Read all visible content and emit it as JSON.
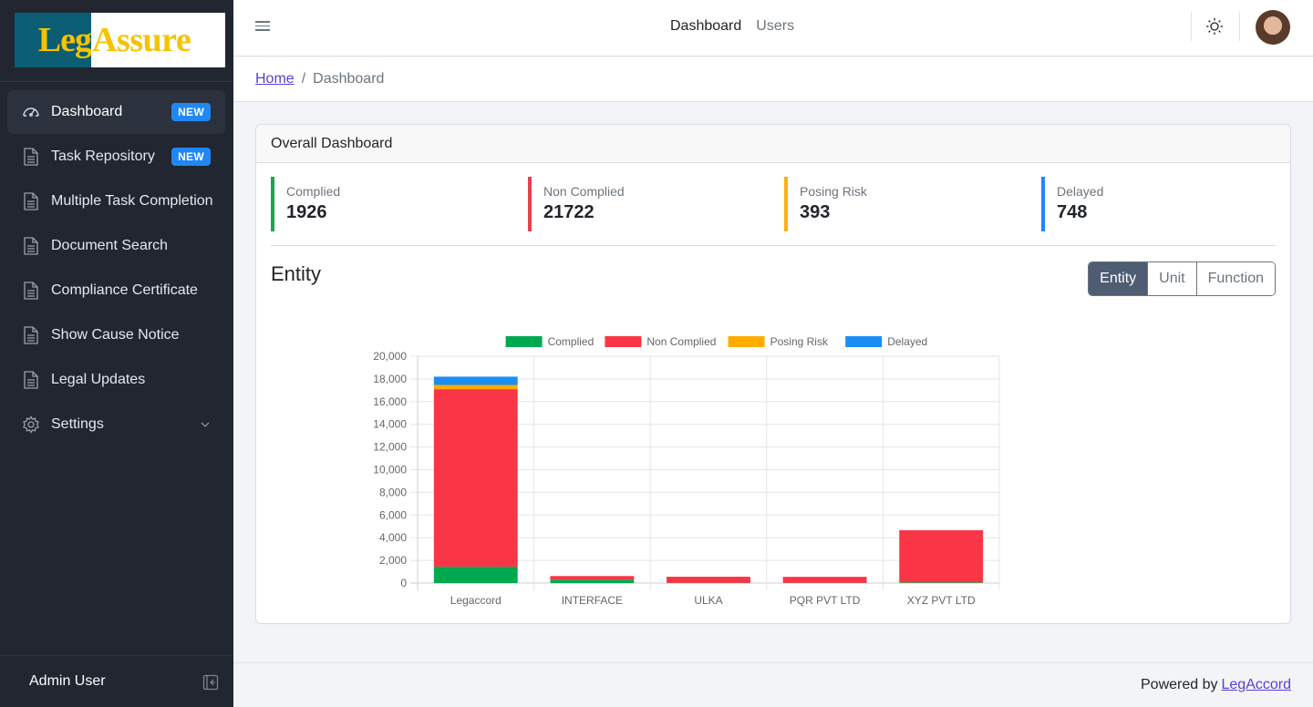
{
  "logo": {
    "part1": "Leg",
    "part2": "Assure"
  },
  "sidebar": {
    "items": [
      {
        "label": "Dashboard",
        "badge": "NEW",
        "icon": "speedometer-icon"
      },
      {
        "label": "Task Repository",
        "badge": "NEW",
        "icon": "document-icon"
      },
      {
        "label": "Multiple Task Completion",
        "icon": "document-icon"
      },
      {
        "label": "Document Search",
        "icon": "document-icon"
      },
      {
        "label": "Compliance Certificate",
        "icon": "document-icon"
      },
      {
        "label": "Show Cause Notice",
        "icon": "document-icon"
      },
      {
        "label": "Legal Updates",
        "icon": "document-icon"
      },
      {
        "label": "Settings",
        "icon": "gear-icon"
      }
    ],
    "footer_user": "Admin User"
  },
  "header": {
    "nav": [
      "Dashboard",
      "Users"
    ]
  },
  "breadcrumb": {
    "home": "Home",
    "current": "Dashboard"
  },
  "card": {
    "title": "Overall Dashboard",
    "stats": [
      {
        "label": "Complied",
        "value": "1926",
        "color": "#1aa64a"
      },
      {
        "label": "Non Complied",
        "value": "21722",
        "color": "#e5424d"
      },
      {
        "label": "Posing Risk",
        "value": "393",
        "color": "#f9b115"
      },
      {
        "label": "Delayed",
        "value": "748",
        "color": "#1f88f5"
      }
    ],
    "section_title": "Entity",
    "view_buttons": [
      "Entity",
      "Unit",
      "Function"
    ]
  },
  "chart_data": {
    "type": "bar",
    "stacked": true,
    "categories": [
      "Legaccord",
      "INTERFACE",
      "ULKA",
      "PQR PVT LTD",
      "XYZ PVT LTD"
    ],
    "series": [
      {
        "name": "Complied",
        "color": "#00a94f",
        "values": [
          1450,
          300,
          20,
          20,
          60
        ]
      },
      {
        "name": "Non Complied",
        "color": "#fa3546",
        "values": [
          15650,
          320,
          540,
          530,
          4600
        ]
      },
      {
        "name": "Posing Risk",
        "color": "#ffac00",
        "values": [
          370,
          0,
          0,
          0,
          0
        ]
      },
      {
        "name": "Delayed",
        "color": "#1b8ef3",
        "values": [
          730,
          0,
          0,
          0,
          0
        ]
      }
    ],
    "ylim": [
      0,
      20000
    ],
    "yticks": [
      "0",
      "2,000",
      "4,000",
      "6,000",
      "8,000",
      "10,000",
      "12,000",
      "14,000",
      "16,000",
      "18,000",
      "20,000"
    ],
    "legend_position": "top",
    "grid": true
  },
  "footer": {
    "powered_by": "Powered by",
    "link": "LegAccord"
  }
}
